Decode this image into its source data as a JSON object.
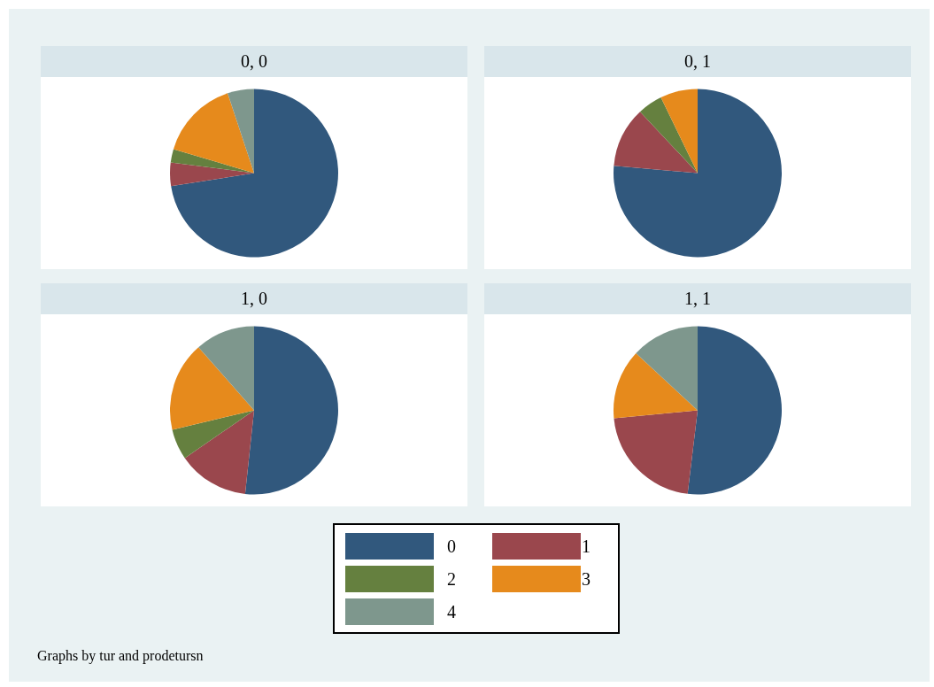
{
  "chart_data": [
    {
      "type": "pie",
      "title": "0, 0",
      "categories": [
        "0",
        "1",
        "2",
        "3",
        "4"
      ],
      "values": [
        72.5,
        4.5,
        2.6,
        15.3,
        5.1
      ],
      "colors": [
        "#31587d",
        "#9a474d",
        "#65803f",
        "#e68a1c",
        "#7e978d"
      ],
      "legend": "bottom"
    },
    {
      "type": "pie",
      "title": "0, 1",
      "categories": [
        null,
        null,
        null,
        null
      ],
      "values": [
        76.4,
        11.6,
        4.8,
        7.2
      ],
      "colors": [
        "#31587d",
        "#9a474d",
        "#65803f",
        "#e68a1c"
      ]
    },
    {
      "type": "pie",
      "title": "1, 0",
      "categories": [
        null,
        null,
        null,
        null,
        null
      ],
      "values": [
        51.7,
        13.7,
        5.9,
        17.2,
        11.5
      ],
      "colors": [
        "#31587d",
        "#9a474d",
        "#65803f",
        "#e68a1c",
        "#7e978d"
      ]
    },
    {
      "type": "pie",
      "title": "1, 1",
      "categories": [
        null,
        null,
        null,
        null
      ],
      "values": [
        51.9,
        21.6,
        13.4,
        13.1
      ],
      "colors": [
        "#31587d",
        "#9a474d",
        "#e68a1c",
        "#7e978d"
      ],
      "annotations": [
        "Graphs by tur and prodetursn"
      ]
    }
  ]
}
